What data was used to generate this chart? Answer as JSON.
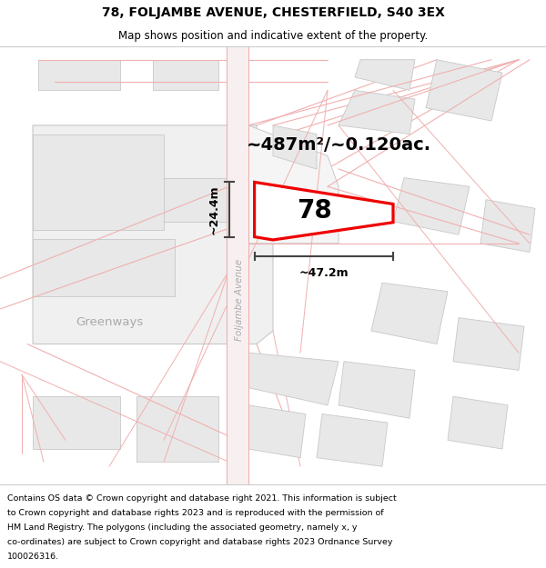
{
  "title_line1": "78, FOLJAMBE AVENUE, CHESTERFIELD, S40 3EX",
  "title_line2": "Map shows position and indicative extent of the property.",
  "footer_lines": [
    "Contains OS data © Crown copyright and database right 2021. This information is subject",
    "to Crown copyright and database rights 2023 and is reproduced with the permission of",
    "HM Land Registry. The polygons (including the associated geometry, namely x, y",
    "co-ordinates) are subject to Crown copyright and database rights 2023 Ordnance Survey",
    "100026316."
  ],
  "area_label": "~487m²/~0.120ac.",
  "number_label": "78",
  "dim_width": "~47.2m",
  "dim_height": "~24.4m",
  "road_label": "Foljambe Avenue",
  "greenways_label": "Greenways",
  "map_bg": "#ffffff",
  "red_color": "#ee0000",
  "road_line_color": "#f0b0b0",
  "building_fill": "#e8e8e8",
  "building_edge": "#c8c8c8",
  "road_fill": "#f8f0f0",
  "dim_color": "#444444",
  "gray_label_color": "#aaaaaa",
  "title_fontsize": 10,
  "subtitle_fontsize": 8.5,
  "footer_fontsize": 6.8,
  "area_fontsize": 14,
  "number_fontsize": 20,
  "dim_fontsize": 9
}
